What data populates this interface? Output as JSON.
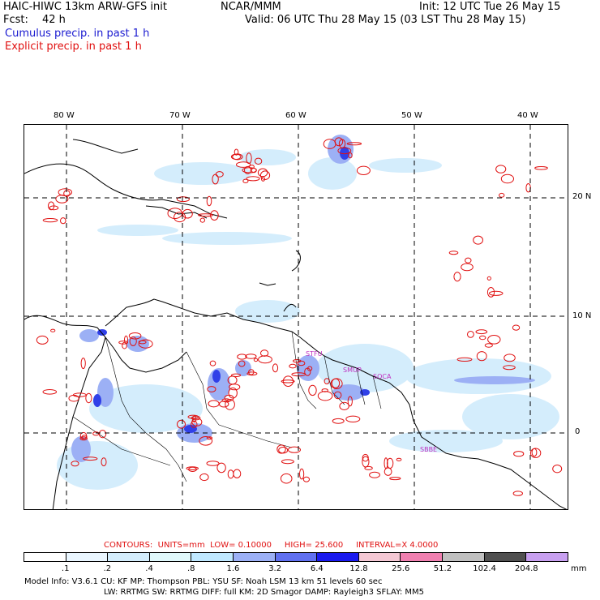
{
  "header": {
    "model_name": "HAIC-HIWC 13km ARW-GFS init",
    "org": "NCAR/MMM",
    "init": "Init: 12 UTC Tue 26 May 15",
    "fcst_label": "Fcst:",
    "fcst_value": "42 h",
    "valid": "Valid: 06 UTC Thu 28 May 15 (03 LST Thu 28 May 15)",
    "cumulus_legend": "Cumulus precip. in past 1 h",
    "explicit_legend": "Explicit precip. in past 1 h"
  },
  "map": {
    "lon_labels": [
      "80 W",
      "70 W",
      "60 W",
      "50 W",
      "40 W"
    ],
    "lat_labels": [
      "20 N",
      "10 N",
      "0"
    ],
    "region_labels": [
      "STFU",
      "SMUP",
      "SOCA",
      "SBBE"
    ]
  },
  "contours": {
    "label": "CONTOURS:",
    "units": "UNITS=mm",
    "low": "LOW= 0.10000",
    "high": "HIGH= 25.600",
    "interval": "INTERVAL=X 4.0000"
  },
  "colorbar": {
    "ticks": [
      ".1",
      ".2",
      ".4",
      ".8",
      "1.6",
      "3.2",
      "6.4",
      "12.8",
      "25.6",
      "51.2",
      "102.4",
      "204.8"
    ],
    "unit": "mm",
    "colors": [
      "#ffffff",
      "#eaf6ff",
      "#d4edfc",
      "#e0f8fb",
      "#c0e8ff",
      "#9cb0f5",
      "#6070f0",
      "#1a1aee",
      "#f4c8d4",
      "#f080b0",
      "#c0c0c0",
      "#505050",
      "#c8a0f0"
    ]
  },
  "model_info": {
    "line1": "Model Info: V3.6.1    CU: KF    MP: Thompson    PBL: YSU    SF: Noah LSM    13 km    51 levels    60 sec",
    "line2": "LW: RRTMG    SW: RRTMG    DIFF: full    KM: 2D Smagor  DAMP: Rayleigh3   SFLAY: MM5"
  },
  "colors": {
    "cumulus": "#1a1ad0",
    "explicit": "#e01010",
    "region_label": "#c030c0"
  }
}
